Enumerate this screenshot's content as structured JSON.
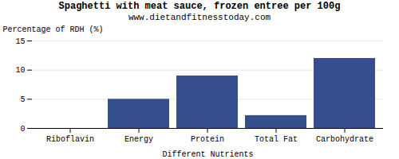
{
  "chart_data": {
    "type": "bar",
    "title": "Spaghetti with meat sauce, frozen entree per 100g",
    "subtitle": "www.dietandfitnesstoday.com",
    "xlabel": "Different Nutrients",
    "ylabel": "Percentage of RDH (%)",
    "categories": [
      "Riboflavin",
      "Energy",
      "Protein",
      "Total Fat",
      "Carbohydrate"
    ],
    "values": [
      0,
      5,
      9,
      2.2,
      12
    ],
    "color": "#354f8e",
    "ylim": [
      0,
      15
    ],
    "yticks": [
      0,
      5,
      10,
      15
    ],
    "grid": true
  }
}
